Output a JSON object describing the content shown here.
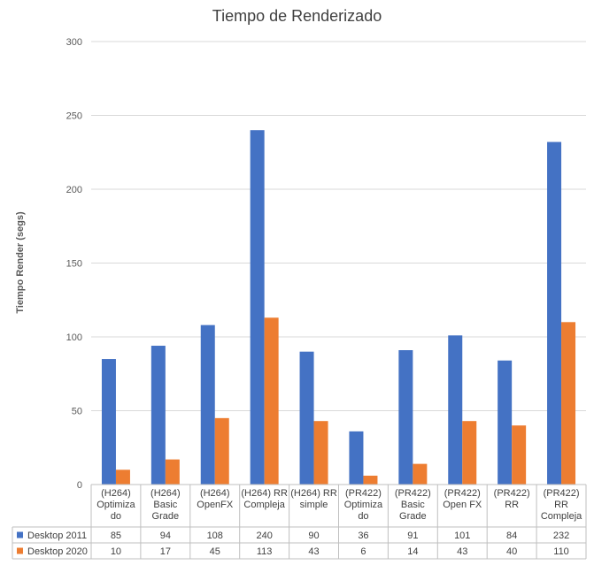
{
  "chart_data": {
    "type": "bar",
    "title": "Tiempo de Renderizado",
    "ylabel": "Tiempo Render (segs)",
    "xlabel": "",
    "ylim": [
      0,
      300
    ],
    "yticks": [
      0,
      50,
      100,
      150,
      200,
      250,
      300
    ],
    "grid": true,
    "legend": "data-table",
    "categories": [
      [
        "(H264)",
        "Optimiza",
        "do"
      ],
      [
        "(H264)",
        "Basic",
        "Grade"
      ],
      [
        "(H264)",
        "OpenFX"
      ],
      [
        "(H264) RR",
        "Compleja"
      ],
      [
        "(H264) RR",
        "simple"
      ],
      [
        "(PR422)",
        "Optimiza",
        "do"
      ],
      [
        "(PR422)",
        "Basic",
        "Grade"
      ],
      [
        "(PR422)",
        "Open FX"
      ],
      [
        "(PR422)",
        "RR"
      ],
      [
        "(PR422)",
        "RR",
        "Compleja"
      ]
    ],
    "series": [
      {
        "name": "Desktop 2011",
        "color": "#4472c4",
        "values": [
          85,
          94,
          108,
          240,
          90,
          36,
          91,
          101,
          84,
          232
        ]
      },
      {
        "name": "Desktop 2020",
        "color": "#ed7d31",
        "values": [
          10,
          17,
          45,
          113,
          43,
          6,
          14,
          43,
          40,
          110
        ]
      }
    ]
  }
}
